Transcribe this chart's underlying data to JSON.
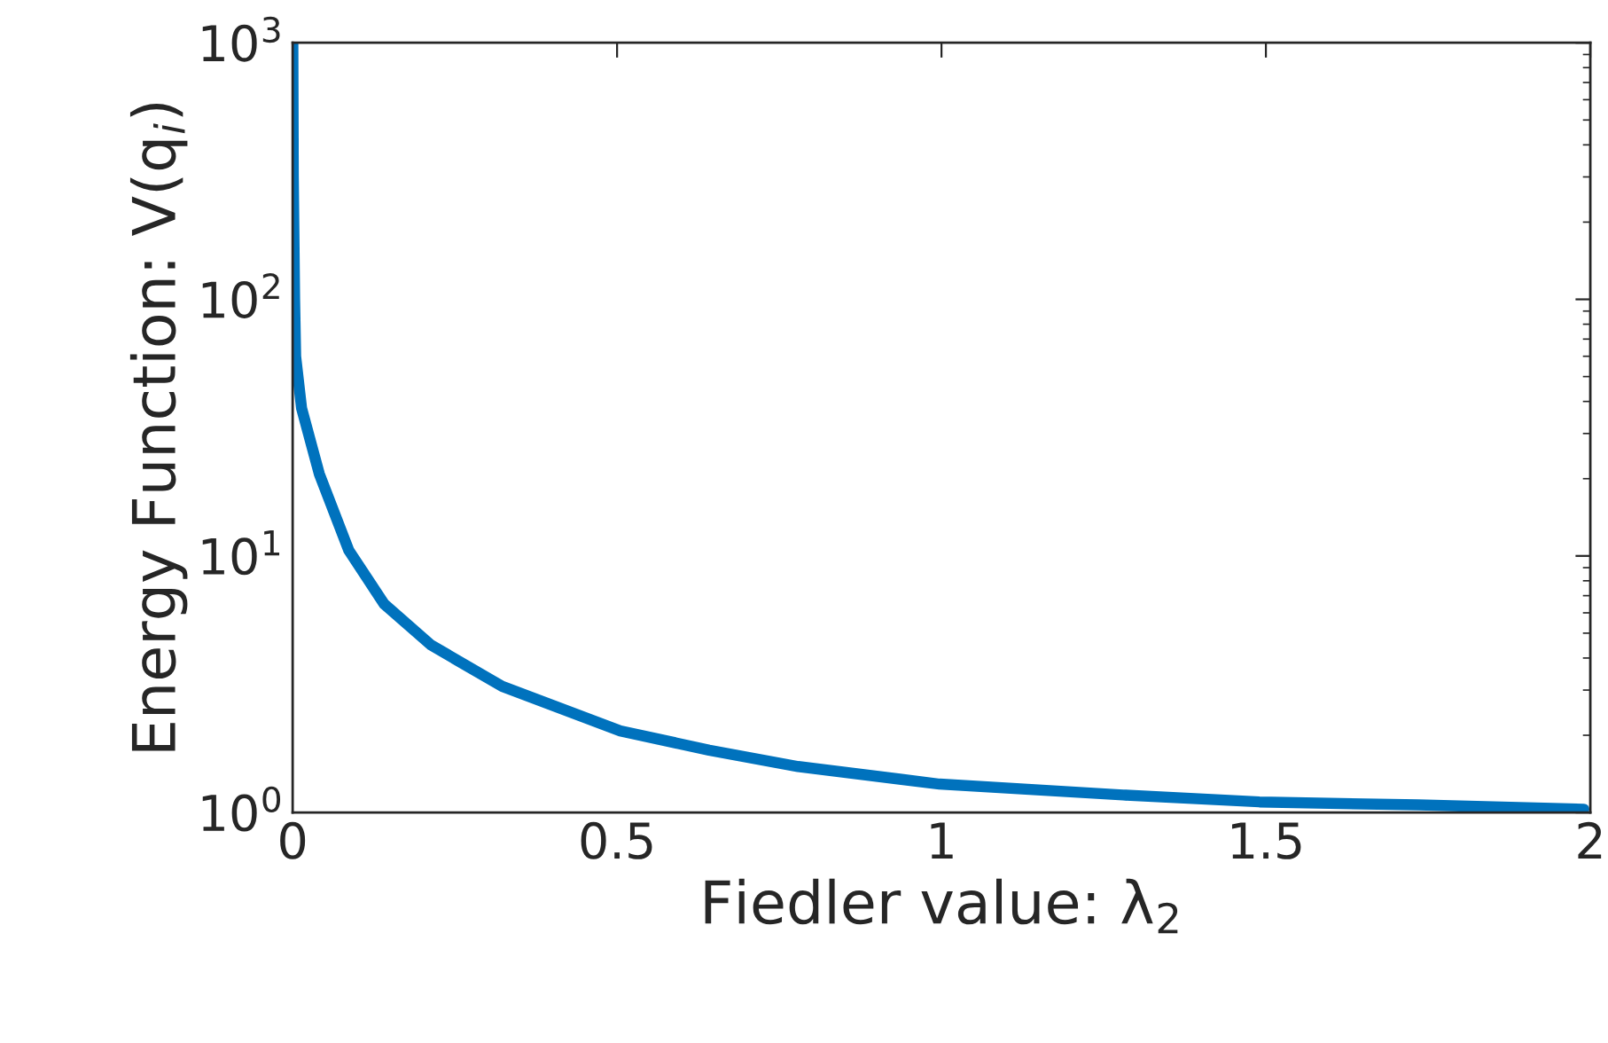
{
  "chart_data": {
    "type": "line",
    "xlabel": "Fiedler value: λ$_{2}$",
    "ylabel": "Energy Function: V(q$_{i}$)",
    "log": "y",
    "grid": false,
    "marker": "none",
    "line_style": "solid",
    "xlim": [
      0,
      2
    ],
    "xticks": [
      0,
      0.5,
      1,
      1.5,
      2
    ],
    "ylim": [
      1,
      1000
    ],
    "yticks": [
      {
        "value": 1,
        "label": "10$^{0}$"
      },
      {
        "value": 10,
        "label": "10$^{1}$"
      },
      {
        "value": 100,
        "label": "10$^{2}$"
      },
      {
        "value": 1000,
        "label": "10$^{3}$"
      }
    ],
    "series": [
      {
        "color": "#0072bd",
        "x": [
          0.0003,
          0.001,
          0.003,
          0.0046,
          0.0137,
          0.041,
          0.0866,
          0.141,
          0.213,
          0.323,
          0.505,
          0.642,
          0.779,
          0.997,
          1.28,
          1.49,
          1.735,
          1.99
        ],
        "values": [
          1000,
          300,
          100,
          60,
          37.7,
          20.9,
          10.5,
          6.5,
          4.5,
          3.1,
          2.08,
          1.75,
          1.51,
          1.29,
          1.17,
          1.1,
          1.07,
          1.03
        ]
      }
    ]
  }
}
